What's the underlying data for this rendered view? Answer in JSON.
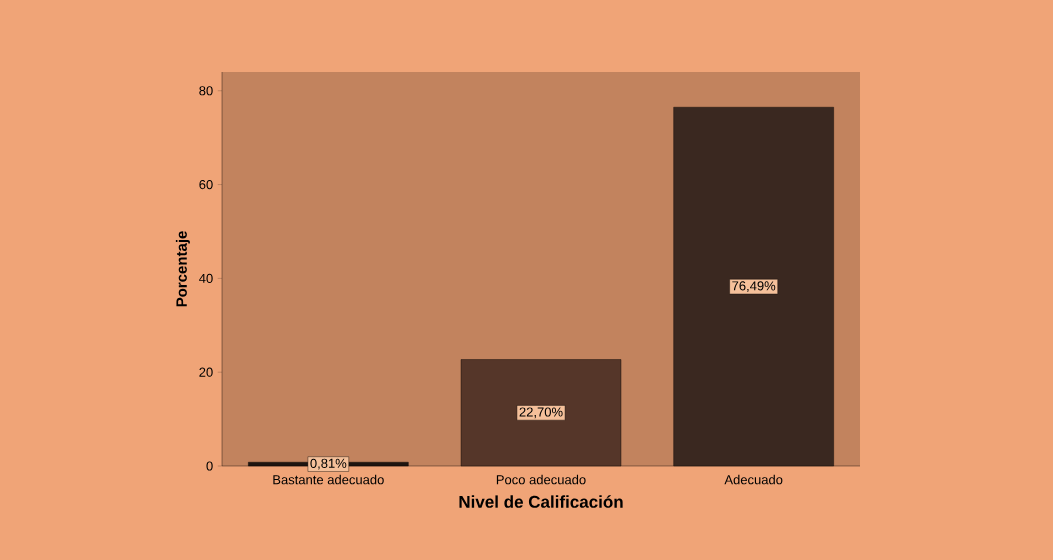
{
  "chart_data": {
    "type": "bar",
    "xlabel": "Nivel de Calificación",
    "ylabel": "Porcentaje",
    "categories": [
      "Bastante adecuado",
      "Poco adecuado",
      "Adecuado"
    ],
    "values": [
      0.81,
      22.7,
      76.49
    ],
    "value_labels": [
      "0,81%",
      "22,70%",
      "76,49%"
    ],
    "colors": [
      "#1e1510",
      "#553629",
      "#3a2820"
    ],
    "ylim": [
      0,
      84
    ],
    "yticks": [
      0,
      20,
      40,
      60,
      80
    ],
    "grid": false
  }
}
